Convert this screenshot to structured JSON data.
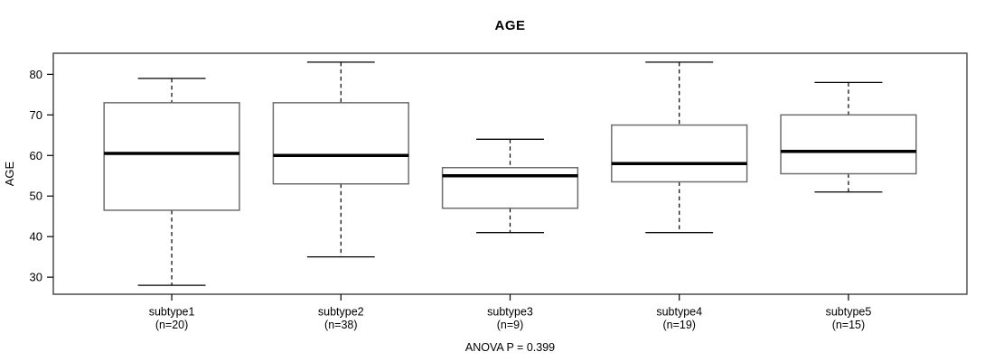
{
  "figure": {
    "title": "AGE",
    "footer": "ANOVA P = 0.399"
  },
  "chart_data": {
    "type": "boxplot",
    "title": "AGE",
    "xlabel": "",
    "ylabel": "AGE",
    "annotation": "ANOVA P = 0.399",
    "categories": [
      "subtype1",
      "subtype2",
      "subtype3",
      "subtype4",
      "subtype5"
    ],
    "boxes": [
      {
        "label": "subtype1",
        "sublabel": "(n=20)",
        "n": 20,
        "whisker_low": 28,
        "q1": 46.5,
        "median": 60.5,
        "q3": 73,
        "whisker_high": 79
      },
      {
        "label": "subtype2",
        "sublabel": "(n=38)",
        "n": 38,
        "whisker_low": 35,
        "q1": 53,
        "median": 60,
        "q3": 73,
        "whisker_high": 83
      },
      {
        "label": "subtype3",
        "sublabel": "(n=9)",
        "n": 9,
        "whisker_low": 41,
        "q1": 47,
        "median": 55,
        "q3": 57,
        "whisker_high": 64
      },
      {
        "label": "subtype4",
        "sublabel": "(n=19)",
        "n": 19,
        "whisker_low": 41,
        "q1": 53.5,
        "median": 58,
        "q3": 67.5,
        "whisker_high": 83
      },
      {
        "label": "subtype5",
        "sublabel": "(n=15)",
        "n": 15,
        "whisker_low": 51,
        "q1": 55.5,
        "median": 61,
        "q3": 70,
        "whisker_high": 78
      }
    ],
    "y_ticks": [
      30,
      40,
      50,
      60,
      70,
      80
    ],
    "ylim": [
      25.8,
      85.2
    ],
    "xlim": [
      0.3,
      5.7
    ],
    "box_width": 0.8,
    "staple_width": 0.4,
    "grid": false,
    "legend_position": "none",
    "colors": {
      "background": "#ffffff",
      "frame": "#4d4d4d",
      "box_border": "#6e6e6e",
      "box_fill": "#ffffff",
      "whisker": "#000000",
      "median": "#000000",
      "axis": "#000000",
      "text": "#000000"
    }
  }
}
